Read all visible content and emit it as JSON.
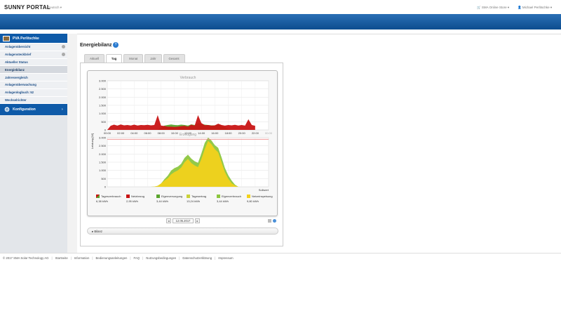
{
  "header": {
    "logo": "SUNNY PORTAL",
    "language": "Deutsch",
    "store": "SMA Online Store",
    "user": "Michael Perlitschke"
  },
  "sidebar": {
    "plant": "PVA Perlitschke",
    "items": [
      {
        "label": "Anlagenübersicht"
      },
      {
        "label": "Anlagensteckbrief"
      },
      {
        "label": "Aktueller Status"
      },
      {
        "label": "Energiebilanz"
      },
      {
        "label": "Jahresvergleich"
      },
      {
        "label": "Anlagenüberwachung"
      },
      {
        "label": "Anlagenlogbuch: 52"
      },
      {
        "label": "Wechselrichter"
      }
    ],
    "config": "Konfiguration"
  },
  "main": {
    "title": "Energiebilanz",
    "help": "?",
    "tabs": [
      {
        "label": "Aktuell"
      },
      {
        "label": "Tag"
      },
      {
        "label": "Monat"
      },
      {
        "label": "Jahr"
      },
      {
        "label": "Gesamt"
      }
    ],
    "date": "12.05.2017",
    "prev": "◂",
    "next": "▸",
    "bilanz": "▸ Bilanz"
  },
  "footer": {
    "copyright": "© 2017 SMA Solar Technology AG",
    "links": [
      "Startseite",
      "Information",
      "Bedienungsanleitungen",
      "FAQ",
      "Nutzungsbedingungen",
      "Datenschutzerklärung",
      "Impressum"
    ]
  },
  "chart_data": {
    "type": "area",
    "top": {
      "title": "Verbrauch",
      "yticks": [
        "3.000",
        "2.500",
        "2.000",
        "1.500",
        "1.000",
        "500",
        "0"
      ],
      "ylim": [
        0,
        3000
      ],
      "xticks": [
        "00:00",
        "02:00",
        "04:00",
        "06:00",
        "08:00",
        "10:00",
        "12:00",
        "14:00",
        "16:00",
        "18:00",
        "20:00",
        "22:00",
        "00:00"
      ],
      "x": [
        0,
        0.5,
        1,
        1.5,
        2,
        2.5,
        3,
        3.5,
        4,
        4.5,
        5,
        5.5,
        6,
        6.5,
        7,
        7.5,
        8,
        8.5,
        9,
        9.5,
        10,
        10.5,
        11,
        11.5,
        12,
        12.5,
        13,
        13.5,
        14,
        14.5,
        15,
        15.5,
        16,
        16.5,
        17,
        17.5,
        18,
        18.5,
        19,
        19.5,
        20,
        20.5,
        21,
        21.5,
        22
      ],
      "series": [
        {
          "name": "Netzbezug",
          "color": "#c81414",
          "values": [
            0,
            250,
            320,
            260,
            330,
            280,
            300,
            270,
            320,
            270,
            300,
            290,
            310,
            280,
            300,
            900,
            260,
            240,
            200,
            200,
            180,
            200,
            230,
            250,
            200,
            320,
            260,
            900,
            420,
            290,
            300,
            260,
            280,
            380,
            300,
            260,
            300,
            280,
            310,
            270,
            300,
            260,
            650,
            300,
            250
          ]
        },
        {
          "name": "Eigenverbrauch",
          "color": "#5aa52e",
          "values": [
            0,
            0,
            0,
            0,
            0,
            0,
            0,
            0,
            0,
            0,
            0,
            0,
            0,
            0,
            0,
            20,
            120,
            260,
            300,
            330,
            300,
            290,
            320,
            300,
            260,
            340,
            300,
            420,
            380,
            320,
            300,
            280,
            280,
            330,
            260,
            160,
            60,
            0,
            0,
            0,
            0,
            0,
            0,
            0,
            0
          ]
        }
      ]
    },
    "bottom": {
      "title": "Erzeugung",
      "yticks": [
        "3.000",
        "2.500",
        "2.000",
        "1.500",
        "1.000",
        "500",
        "0"
      ],
      "ylim": [
        0,
        3000
      ],
      "ylabel": "Leistung [W]",
      "reference_label": "Sollwert",
      "reference_value": 2900,
      "x": [
        0,
        0.5,
        1,
        1.5,
        2,
        2.5,
        3,
        3.5,
        4,
        4.5,
        5,
        5.5,
        6,
        6.5,
        7,
        7.5,
        8,
        8.5,
        9,
        9.5,
        10,
        10.5,
        11,
        11.5,
        12,
        12.5,
        13,
        13.5,
        14,
        14.5,
        15,
        15.5,
        16,
        16.5,
        17,
        17.5,
        18,
        18.5,
        19,
        19.5,
        20,
        20.5,
        21,
        21.5,
        22,
        22.5,
        23,
        23.5,
        24
      ],
      "series": [
        {
          "name": "Netzeinspeisung",
          "color": "#f2d21c",
          "values": [
            0,
            0,
            0,
            0,
            0,
            0,
            0,
            0,
            0,
            0,
            0,
            0,
            0,
            0,
            10,
            60,
            200,
            380,
            520,
            760,
            900,
            1000,
            1180,
            1500,
            1700,
            1450,
            1300,
            1200,
            1700,
            2300,
            2800,
            2600,
            2300,
            2100,
            1500,
            900,
            500,
            220,
            80,
            0,
            0,
            0,
            0,
            0,
            0,
            0,
            0,
            0,
            0
          ]
        },
        {
          "name": "Eigenverbrauch",
          "color": "#8cc63f",
          "values": [
            0,
            0,
            0,
            0,
            0,
            0,
            0,
            0,
            0,
            0,
            0,
            0,
            0,
            0,
            10,
            60,
            200,
            460,
            680,
            990,
            1140,
            1230,
            1410,
            1770,
            1960,
            1720,
            1560,
            1460,
            2030,
            2680,
            3000,
            2830,
            2540,
            2380,
            1800,
            1150,
            700,
            380,
            130,
            0,
            0,
            0,
            0,
            0,
            0,
            0,
            0,
            0,
            0
          ]
        }
      ]
    },
    "legend": [
      {
        "label": "Tagesverbrauch",
        "value": "6,38 kWh",
        "color": "#c81414",
        "split": "#5aa52e"
      },
      {
        "label": "Netzbezug",
        "value": "2,95 kWh",
        "color": "#c81414"
      },
      {
        "label": "Eigenversorgung",
        "value": "3,44 kWh",
        "color": "#5aa52e"
      },
      {
        "label": "Tagesertrag",
        "value": "13,24 kWh",
        "color": "#c9d13a"
      },
      {
        "label": "Eigenverbrauch",
        "value": "3,44 kWh",
        "color": "#8cc63f"
      },
      {
        "label": "Netzeinspeisung",
        "value": "9,80 kWh",
        "color": "#f2d21c"
      }
    ]
  }
}
